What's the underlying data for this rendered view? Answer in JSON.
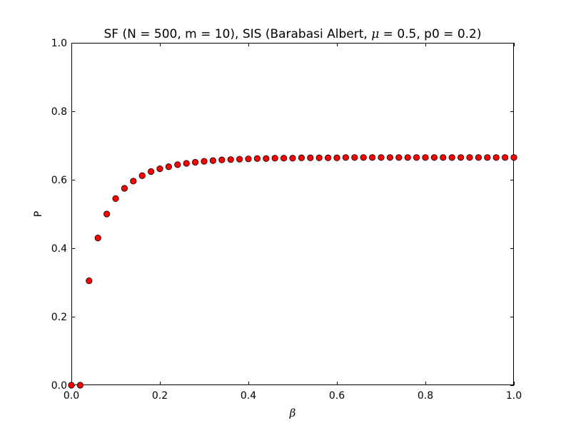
{
  "chart_data": {
    "type": "scatter",
    "title": {
      "prefix": "SF (N = 500, m = 10), SIS (Barabasi Albert, ",
      "symbol": "μ",
      "suffix": " = 0.5, p0 = 0.2)"
    },
    "xlabel": "β",
    "ylabel": "P",
    "xlim": [
      0.0,
      1.0
    ],
    "ylim": [
      0.0,
      1.0
    ],
    "x_ticks": [
      "0.0",
      "0.2",
      "0.4",
      "0.6",
      "0.8",
      "1.0"
    ],
    "y_ticks": [
      "0.0",
      "0.2",
      "0.4",
      "0.6",
      "0.8",
      "1.0"
    ],
    "grid": false,
    "marker_color": "#ff0000",
    "x": [
      0.0,
      0.02,
      0.04,
      0.06,
      0.08,
      0.1,
      0.12,
      0.14,
      0.16,
      0.18,
      0.2,
      0.22,
      0.24,
      0.26,
      0.28,
      0.3,
      0.32,
      0.34,
      0.36,
      0.38,
      0.4,
      0.42,
      0.44,
      0.46,
      0.48,
      0.5,
      0.52,
      0.54,
      0.56,
      0.58,
      0.6,
      0.62,
      0.64,
      0.66,
      0.68,
      0.7,
      0.72,
      0.74,
      0.76,
      0.78,
      0.8,
      0.82,
      0.84,
      0.86,
      0.88,
      0.9,
      0.92,
      0.94,
      0.96,
      0.98,
      1.0
    ],
    "y": [
      0.0,
      0.0,
      0.305,
      0.43,
      0.5,
      0.545,
      0.575,
      0.596,
      0.612,
      0.624,
      0.632,
      0.638,
      0.644,
      0.648,
      0.651,
      0.654,
      0.656,
      0.658,
      0.659,
      0.66,
      0.661,
      0.662,
      0.662,
      0.663,
      0.663,
      0.663,
      0.664,
      0.664,
      0.664,
      0.664,
      0.664,
      0.665,
      0.665,
      0.665,
      0.665,
      0.665,
      0.665,
      0.665,
      0.665,
      0.665,
      0.665,
      0.665,
      0.665,
      0.665,
      0.665,
      0.665,
      0.665,
      0.665,
      0.665,
      0.665,
      0.665
    ]
  }
}
